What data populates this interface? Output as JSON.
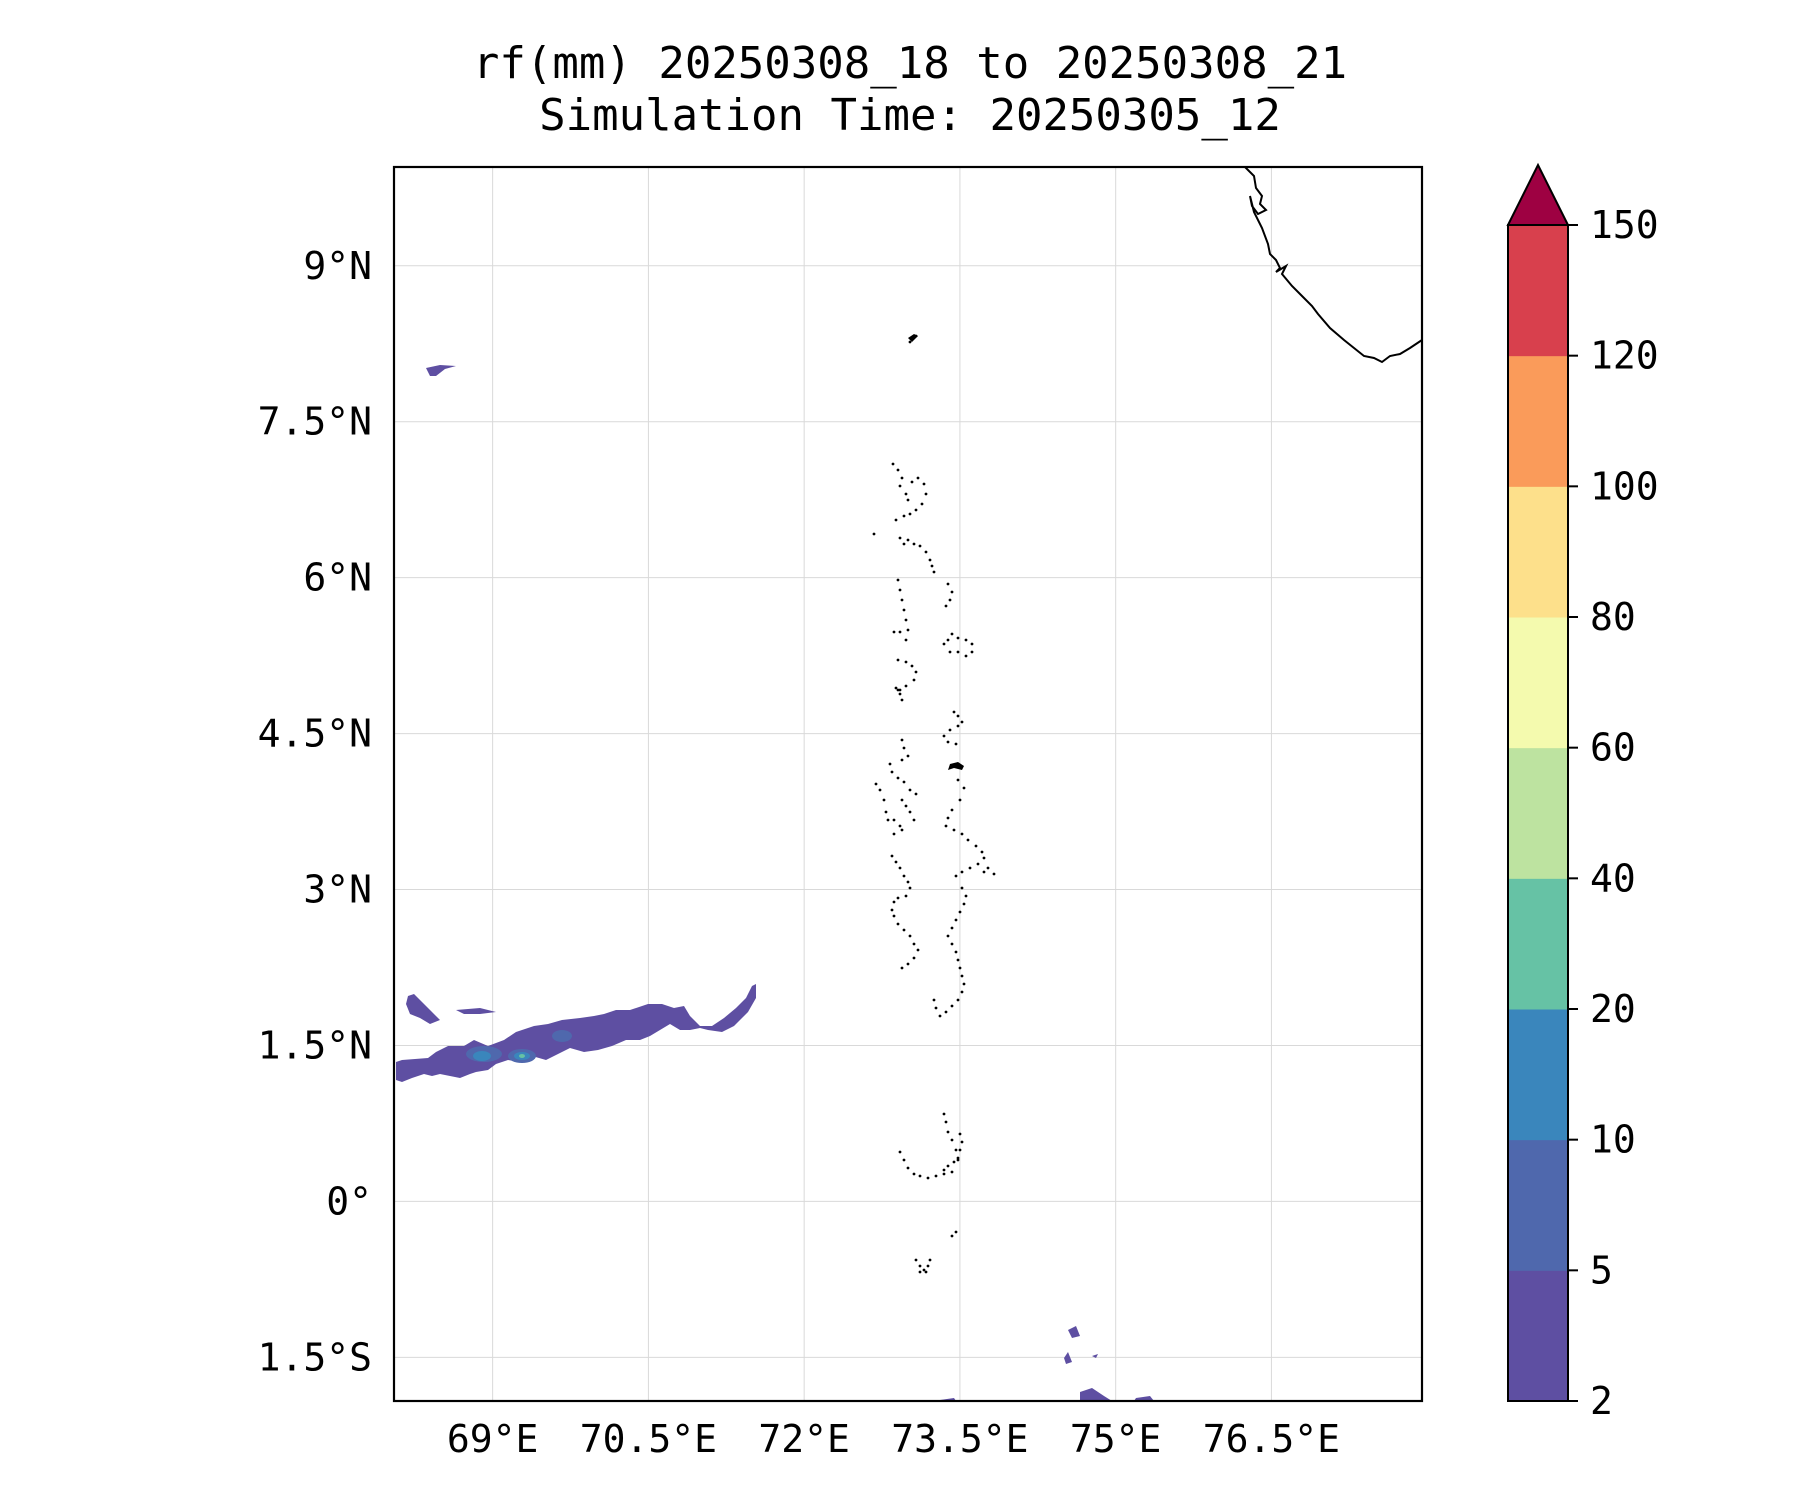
{
  "title": {
    "line1": "rf(mm) 20250308_18 to 20250308_21",
    "line2": "Simulation Time: 20250305_12"
  },
  "map": {
    "lon_range": [
      68.05,
      77.95
    ],
    "lat_range": [
      -1.92,
      9.95
    ],
    "lon_ticks": [
      69,
      70.5,
      72,
      73.5,
      75,
      76.5
    ],
    "lon_tick_labels": [
      "69°E",
      "70.5°E",
      "72°E",
      "73.5°E",
      "75°E",
      "76.5°E"
    ],
    "lat_ticks": [
      9,
      7.5,
      6,
      4.5,
      3,
      1.5,
      0,
      -1.5
    ],
    "lat_tick_labels": [
      "9°N",
      "7.5°N",
      "6°N",
      "4.5°N",
      "3°N",
      "1.5°N",
      "0°",
      "1.5°S"
    ],
    "gridlines": true
  },
  "colorbar": {
    "levels": [
      2,
      5,
      10,
      20,
      40,
      60,
      80,
      100,
      120,
      150
    ],
    "tick_labels": [
      "2",
      "5",
      "10",
      "20",
      "40",
      "60",
      "80",
      "100",
      "120",
      "150"
    ],
    "colors": [
      "#5e4fa2",
      "#4f68ad",
      "#3a86bc",
      "#66c2a5",
      "#bde3a0",
      "#f4faae",
      "#fde08b",
      "#fa9b5a",
      "#d8404d"
    ],
    "extend_color": "#9e0142",
    "extend": "max"
  }
}
